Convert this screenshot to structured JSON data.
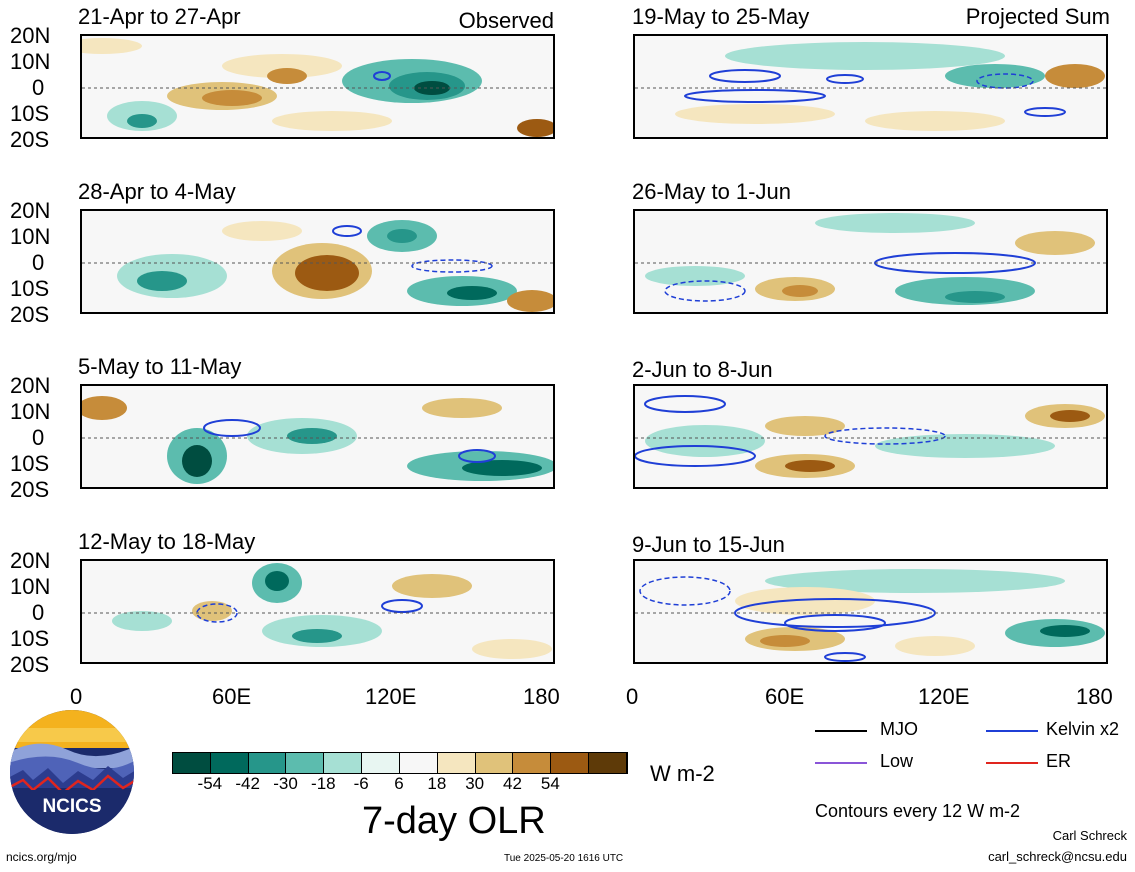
{
  "panels_observed": [
    {
      "title": "21-Apr to 27-Apr",
      "tag": "Observed"
    },
    {
      "title": "28-Apr to 4-May",
      "tag": ""
    },
    {
      "title": "5-May to 11-May",
      "tag": ""
    },
    {
      "title": "12-May to 18-May",
      "tag": ""
    }
  ],
  "panels_projected": [
    {
      "title": "19-May to 25-May",
      "tag": "Projected Sum"
    },
    {
      "title": "26-May to 1-Jun",
      "tag": ""
    },
    {
      "title": "2-Jun to 8-Jun",
      "tag": ""
    },
    {
      "title": "9-Jun to 15-Jun",
      "tag": ""
    }
  ],
  "lat_labels": [
    "20N",
    "10N",
    "0",
    "10S",
    "20S"
  ],
  "lon_labels": [
    "0",
    "60E",
    "120E",
    "180"
  ],
  "colorbar": {
    "ticks": [
      "-54",
      "-42",
      "-30",
      "-18",
      "-6",
      "6",
      "18",
      "30",
      "42",
      "54"
    ],
    "colors": [
      "#004d40",
      "#00695c",
      "#26968a",
      "#5cbcae",
      "#a6e0d4",
      "#e8f6f2",
      "#f7f7f7",
      "#f5e6bf",
      "#e0c27a",
      "#c68c3a",
      "#9c5a12",
      "#5e3a08"
    ],
    "units": "W m-2",
    "title": "7-day OLR"
  },
  "legend": {
    "items": [
      {
        "label": "MJO",
        "color": "#000000"
      },
      {
        "label": "Kelvin x2",
        "color": "#1f3fd6"
      },
      {
        "label": "Low",
        "color": "#8a55d8"
      },
      {
        "label": "ER",
        "color": "#e0251e"
      }
    ],
    "contour_note": "Contours every 12 W m-2"
  },
  "logo": {
    "text": "NCICS"
  },
  "footer": {
    "url": "ncics.org/mjo",
    "timestamp": "Tue 2025-05-20 1616 UTC",
    "author": "Carl Schreck",
    "email": "carl_schreck@ncsu.edu"
  }
}
